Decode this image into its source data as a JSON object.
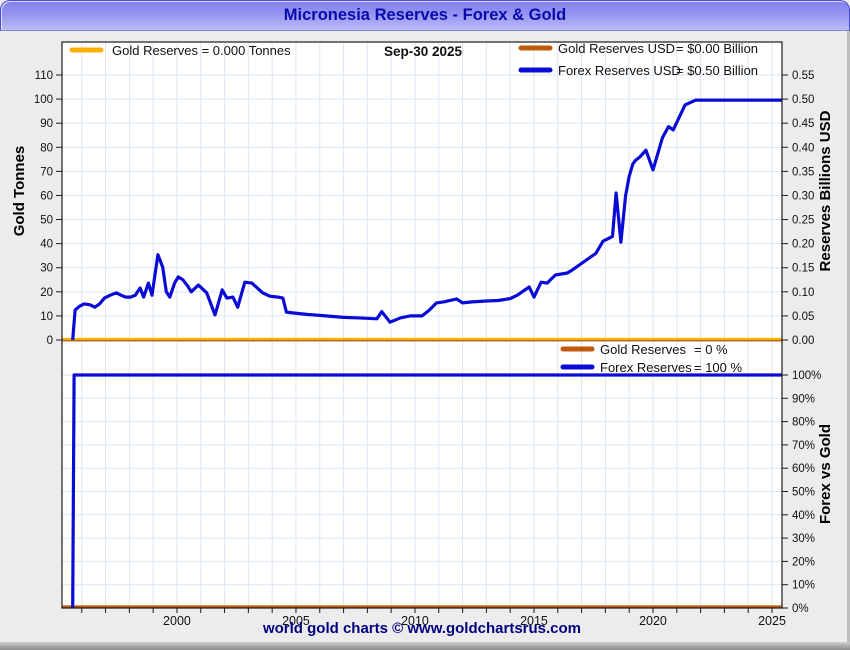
{
  "window": {
    "title": "Micronesia Reserves - Forex & Gold",
    "footer": "world gold charts © www.goldchartsrus.com"
  },
  "colors": {
    "title_text": "#0a0aaa",
    "gold_tonnes": "#FFAE00",
    "gold_usd": "#C05A0A",
    "forex_blue": "#0B0BD6",
    "grid": "#dbe6f3",
    "frame": "#1a1a1a",
    "tick_text": "#111111",
    "footer_text": "#000080",
    "bg": "#ececec",
    "plot_bg": "#ffffff"
  },
  "chart_data": {
    "type": "line",
    "title": "Micronesia Reserves - Forex & Gold",
    "date_label": "Sep-30  2025",
    "x_axis": {
      "min": 1995.17,
      "max": 2025.42,
      "label_ticks": [
        2000,
        2005,
        2010,
        2015,
        2020,
        2025
      ],
      "minor_tick_every_years": 1,
      "grid": true
    },
    "top_panel": {
      "left_axis": {
        "label": "Gold Tonnes",
        "ticks": [
          0,
          10,
          20,
          30,
          40,
          50,
          60,
          70,
          80,
          90,
          100,
          110
        ],
        "min": 0,
        "max": 123.5
      },
      "right_axis": {
        "label": "Reserves Billions USD",
        "ticks": [
          0,
          0.05,
          0.1,
          0.15,
          0.2,
          0.25,
          0.3,
          0.35,
          0.4,
          0.45,
          0.5,
          0.55
        ]
      },
      "legend_left": [
        {
          "color_key": "gold_tonnes",
          "label": "Gold Reserves  = 0.000 Tonnes"
        }
      ],
      "legend_right": [
        {
          "color_key": "gold_usd",
          "label": "Gold Reserves USD",
          "value": "= $0.00 Billion"
        },
        {
          "color_key": "forex_blue",
          "label": "Forex Reserves USD",
          "value": "= $0.50 Billion"
        }
      ],
      "series": [
        {
          "name": "gold-reserves-usd",
          "color_key": "gold_usd",
          "axis": "right",
          "width": 2.2,
          "points": [
            [
              1995.17,
              0
            ],
            [
              2025.42,
              0
            ]
          ]
        },
        {
          "name": "gold-reserves-tonnes",
          "color_key": "gold_tonnes",
          "axis": "left",
          "width": 2.2,
          "points": [
            [
              1995.17,
              0
            ],
            [
              2025.42,
              0
            ]
          ]
        },
        {
          "name": "forex-reserves-usd",
          "color_key": "forex_blue",
          "axis": "right",
          "width": 3.2,
          "points": [
            [
              1995.62,
              0
            ],
            [
              1995.72,
              0.062
            ],
            [
              1995.9,
              0.07
            ],
            [
              1996.1,
              0.075
            ],
            [
              1996.35,
              0.073
            ],
            [
              1996.55,
              0.068
            ],
            [
              1996.75,
              0.075
            ],
            [
              1996.95,
              0.087
            ],
            [
              1997.2,
              0.093
            ],
            [
              1997.45,
              0.098
            ],
            [
              1997.65,
              0.093
            ],
            [
              1997.85,
              0.089
            ],
            [
              1998.05,
              0.089
            ],
            [
              1998.25,
              0.093
            ],
            [
              1998.45,
              0.108
            ],
            [
              1998.6,
              0.089
            ],
            [
              1998.8,
              0.118
            ],
            [
              1998.95,
              0.093
            ],
            [
              1999.2,
              0.177
            ],
            [
              1999.4,
              0.151
            ],
            [
              1999.55,
              0.1
            ],
            [
              1999.7,
              0.089
            ],
            [
              1999.9,
              0.118
            ],
            [
              2000.05,
              0.131
            ],
            [
              2000.25,
              0.125
            ],
            [
              2000.45,
              0.112
            ],
            [
              2000.6,
              0.1
            ],
            [
              2000.9,
              0.114
            ],
            [
              2001.25,
              0.098
            ],
            [
              2001.6,
              0.052
            ],
            [
              2001.9,
              0.104
            ],
            [
              2002.1,
              0.087
            ],
            [
              2002.35,
              0.089
            ],
            [
              2002.55,
              0.068
            ],
            [
              2002.85,
              0.12
            ],
            [
              2003.15,
              0.118
            ],
            [
              2003.6,
              0.098
            ],
            [
              2003.9,
              0.091
            ],
            [
              2004.25,
              0.089
            ],
            [
              2004.45,
              0.087
            ],
            [
              2004.6,
              0.058
            ],
            [
              2004.9,
              0.056
            ],
            [
              2005.5,
              0.053
            ],
            [
              2006,
              0.051
            ],
            [
              2006.5,
              0.049
            ],
            [
              2007,
              0.047
            ],
            [
              2007.5,
              0.046
            ],
            [
              2008,
              0.045
            ],
            [
              2008.4,
              0.044
            ],
            [
              2008.6,
              0.059
            ],
            [
              2008.95,
              0.037
            ],
            [
              2009.4,
              0.046
            ],
            [
              2009.8,
              0.05
            ],
            [
              2010.3,
              0.05
            ],
            [
              2010.6,
              0.062
            ],
            [
              2010.9,
              0.077
            ],
            [
              2011.2,
              0.079
            ],
            [
              2011.75,
              0.085
            ],
            [
              2012,
              0.077
            ],
            [
              2012.4,
              0.079
            ],
            [
              2013,
              0.081
            ],
            [
              2013.5,
              0.082
            ],
            [
              2014,
              0.086
            ],
            [
              2014.3,
              0.093
            ],
            [
              2014.8,
              0.11
            ],
            [
              2015,
              0.089
            ],
            [
              2015.3,
              0.12
            ],
            [
              2015.55,
              0.118
            ],
            [
              2015.9,
              0.135
            ],
            [
              2016.4,
              0.139
            ],
            [
              2016.6,
              0.145
            ],
            [
              2017.2,
              0.166
            ],
            [
              2017.6,
              0.18
            ],
            [
              2017.9,
              0.205
            ],
            [
              2018.1,
              0.21
            ],
            [
              2018.3,
              0.215
            ],
            [
              2018.45,
              0.305
            ],
            [
              2018.65,
              0.203
            ],
            [
              2018.85,
              0.3
            ],
            [
              2019,
              0.34
            ],
            [
              2019.15,
              0.365
            ],
            [
              2019.25,
              0.372
            ],
            [
              2019.45,
              0.38
            ],
            [
              2019.7,
              0.394
            ],
            [
              2020,
              0.353
            ],
            [
              2020.4,
              0.42
            ],
            [
              2020.65,
              0.443
            ],
            [
              2020.85,
              0.436
            ],
            [
              2021.05,
              0.457
            ],
            [
              2021.35,
              0.488
            ],
            [
              2021.8,
              0.498
            ],
            [
              2025.42,
              0.498
            ]
          ]
        }
      ]
    },
    "bottom_panel": {
      "right_axis": {
        "label": "Forex vs Gold",
        "ticks_pct": [
          0,
          10,
          20,
          30,
          40,
          50,
          60,
          70,
          80,
          90,
          100
        ]
      },
      "legend": [
        {
          "color_key": "gold_usd",
          "label": "Gold Reserves",
          "value": "= 0 %"
        },
        {
          "color_key": "forex_blue",
          "label": "Forex Reserves",
          "value": "= 100 %"
        }
      ],
      "series": [
        {
          "name": "gold-share-pct",
          "color_key": "gold_usd",
          "width": 2.2,
          "points": [
            [
              1995.17,
              0
            ],
            [
              2025.42,
              0
            ]
          ]
        },
        {
          "name": "forex-share-pct",
          "color_key": "forex_blue",
          "width": 3.2,
          "points": [
            [
              1995.62,
              0
            ],
            [
              1995.68,
              100
            ],
            [
              2025.42,
              100
            ]
          ]
        }
      ]
    }
  }
}
